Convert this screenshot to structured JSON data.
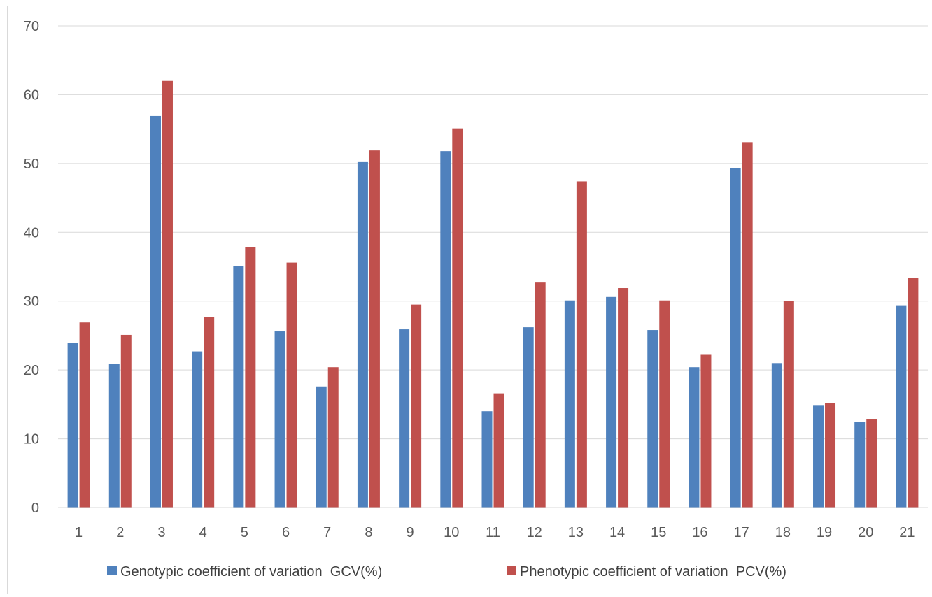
{
  "chart_data": {
    "type": "bar",
    "title": "",
    "xlabel": "",
    "ylabel": "",
    "ylim": [
      0,
      70
    ],
    "yticks": [
      0,
      10,
      20,
      30,
      40,
      50,
      60,
      70
    ],
    "grid": true,
    "legend_position": "bottom",
    "categories": [
      "1",
      "2",
      "3",
      "4",
      "5",
      "6",
      "7",
      "8",
      "9",
      "10",
      "11",
      "12",
      "13",
      "14",
      "15",
      "16",
      "17",
      "18",
      "19",
      "20",
      "21"
    ],
    "series": [
      {
        "name": "Genotypic coefficient of variation  GCV(%)",
        "color": "#4f81bd",
        "values": [
          23.9,
          20.9,
          56.9,
          22.7,
          35.1,
          25.6,
          17.6,
          50.2,
          25.9,
          51.8,
          14.0,
          26.2,
          30.1,
          30.6,
          25.8,
          20.4,
          49.3,
          21.0,
          14.8,
          12.4,
          29.3
        ]
      },
      {
        "name": "Phenotypic coefficient of variation  PCV(%)",
        "color": "#c0504d",
        "values": [
          26.9,
          25.1,
          62.0,
          27.7,
          37.8,
          35.6,
          20.4,
          51.9,
          29.5,
          55.1,
          16.6,
          32.7,
          47.4,
          31.9,
          30.1,
          22.2,
          53.1,
          30.0,
          15.2,
          12.8,
          33.4
        ]
      }
    ]
  }
}
